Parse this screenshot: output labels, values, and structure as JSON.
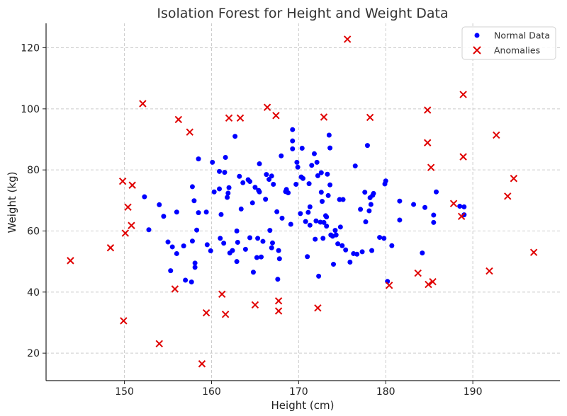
{
  "chart_data": {
    "type": "scatter",
    "title": "Isolation Forest for Height and Weight Data",
    "xlabel": "Height (cm)",
    "ylabel": "Weight (kg)",
    "xlim": [
      141,
      200
    ],
    "ylim": [
      11,
      128
    ],
    "x_ticks": [
      150,
      160,
      170,
      180,
      190
    ],
    "y_ticks": [
      20,
      40,
      60,
      80,
      100,
      120
    ],
    "grid": true,
    "legend_position": "top-right",
    "series": [
      {
        "name": "Normal Data",
        "marker": "circle",
        "color": "#0000ff",
        "points": [
          [
            152.3,
            71.2
          ],
          [
            152.8,
            60.4
          ],
          [
            154,
            68.6
          ],
          [
            154.5,
            64.8
          ],
          [
            155,
            56.4
          ],
          [
            155.3,
            47
          ],
          [
            155.5,
            54.8
          ],
          [
            156,
            66.2
          ],
          [
            156,
            52.6
          ],
          [
            156.8,
            55.1
          ],
          [
            157,
            43.9
          ],
          [
            157.7,
            43.3
          ],
          [
            157.8,
            56.7
          ],
          [
            157.8,
            74.5
          ],
          [
            158,
            69.9
          ],
          [
            158.1,
            49.5
          ],
          [
            158.1,
            48.1
          ],
          [
            158.3,
            60.3
          ],
          [
            158.5,
            83.6
          ],
          [
            158.5,
            66
          ],
          [
            159.4,
            66.2
          ],
          [
            159.5,
            55.5
          ],
          [
            159.9,
            53.5
          ],
          [
            160.1,
            82.5
          ],
          [
            160.3,
            72.8
          ],
          [
            160.9,
            73.8
          ],
          [
            160.9,
            79.5
          ],
          [
            161,
            57.6
          ],
          [
            161.1,
            65.4
          ],
          [
            161.4,
            56
          ],
          [
            161.5,
            79.2
          ],
          [
            161.6,
            84.1
          ],
          [
            161.8,
            71
          ],
          [
            161.9,
            72.4
          ],
          [
            162,
            74.2
          ],
          [
            162.1,
            52.8
          ],
          [
            162.4,
            53.6
          ],
          [
            162.7,
            91
          ],
          [
            162.9,
            60
          ],
          [
            162.9,
            50
          ],
          [
            163,
            56.3
          ],
          [
            163.2,
            77.9
          ],
          [
            163.4,
            67.2
          ],
          [
            163.6,
            75.8
          ],
          [
            163.9,
            54
          ],
          [
            164.2,
            76.8
          ],
          [
            164.4,
            76.2
          ],
          [
            164.4,
            57.8
          ],
          [
            164.7,
            69.2
          ],
          [
            164.8,
            46.5
          ],
          [
            165,
            74.3
          ],
          [
            165.2,
            51.3
          ],
          [
            165.3,
            57.6
          ],
          [
            165.4,
            73.3
          ],
          [
            165.5,
            72.8
          ],
          [
            165.5,
            82
          ],
          [
            165.7,
            51.5
          ],
          [
            165.9,
            56.6
          ],
          [
            166.2,
            70.4
          ],
          [
            166.3,
            78.5
          ],
          [
            166.6,
            76.9
          ],
          [
            166.7,
            60.2
          ],
          [
            166.9,
            78
          ],
          [
            166.9,
            54.5
          ],
          [
            167,
            56.1
          ],
          [
            167.1,
            75.3
          ],
          [
            167.5,
            66.3
          ],
          [
            167.6,
            44.2
          ],
          [
            167.7,
            53.6
          ],
          [
            167.8,
            50.9
          ],
          [
            168,
            84.6
          ],
          [
            168.1,
            64.2
          ],
          [
            168.5,
            72.9
          ],
          [
            168.6,
            73.6
          ],
          [
            168.8,
            72.5
          ],
          [
            169.1,
            62.2
          ],
          [
            169.3,
            86.9
          ],
          [
            169.3,
            89.5
          ],
          [
            169.3,
            93.2
          ],
          [
            169.7,
            75.3
          ],
          [
            169.8,
            82.5
          ],
          [
            169.9,
            80.9
          ],
          [
            170.2,
            65.7
          ],
          [
            170.3,
            77.7
          ],
          [
            170.4,
            87.1
          ],
          [
            170.5,
            77.2
          ],
          [
            170.8,
            63.1
          ],
          [
            171,
            51.6
          ],
          [
            171.1,
            66.1
          ],
          [
            171.2,
            75.5
          ],
          [
            171.3,
            61.9
          ],
          [
            171.3,
            67.9
          ],
          [
            171.5,
            81.5
          ],
          [
            171.8,
            85.3
          ],
          [
            171.9,
            57.3
          ],
          [
            172,
            63.3
          ],
          [
            172.1,
            82.5
          ],
          [
            172.2,
            78.1
          ],
          [
            172.3,
            45.2
          ],
          [
            172.5,
            62.9
          ],
          [
            172.6,
            72.7
          ],
          [
            172.6,
            79.1
          ],
          [
            172.7,
            69.7
          ],
          [
            172.8,
            57.6
          ],
          [
            172.9,
            62.8
          ],
          [
            173.1,
            65
          ],
          [
            173.2,
            61.6
          ],
          [
            173.2,
            64.6
          ],
          [
            173.3,
            78.6
          ],
          [
            173.4,
            71.6
          ],
          [
            173.5,
            91.4
          ],
          [
            173.6,
            87.2
          ],
          [
            173.6,
            75.1
          ],
          [
            173.7,
            58.7
          ],
          [
            173.9,
            58.3
          ],
          [
            174,
            49.1
          ],
          [
            174.2,
            60.2
          ],
          [
            174.3,
            58.7
          ],
          [
            174.5,
            55.8
          ],
          [
            174.7,
            70.3
          ],
          [
            174.8,
            61.3
          ],
          [
            175,
            55.2
          ],
          [
            175.1,
            70.3
          ],
          [
            175.4,
            53.8
          ],
          [
            175.9,
            49.8
          ],
          [
            176.3,
            52.6
          ],
          [
            176.5,
            81.3
          ],
          [
            176.7,
            52.4
          ],
          [
            177.1,
            67.1
          ],
          [
            177.3,
            53.2
          ],
          [
            177.6,
            72.7
          ],
          [
            177.7,
            63
          ],
          [
            177.9,
            88
          ],
          [
            178.1,
            66.6
          ],
          [
            178.2,
            70.9
          ],
          [
            178.3,
            68.7
          ],
          [
            178.4,
            53.6
          ],
          [
            178.5,
            71.7
          ],
          [
            178.6,
            72.3
          ],
          [
            179.3,
            57.9
          ],
          [
            179.8,
            57.6
          ],
          [
            179.9,
            75.4
          ],
          [
            180,
            76.4
          ],
          [
            180.2,
            43.5
          ],
          [
            180.7,
            55.2
          ],
          [
            181.6,
            63.6
          ],
          [
            181.6,
            69.8
          ],
          [
            183.2,
            68.7
          ],
          [
            184.2,
            52.8
          ],
          [
            184.5,
            67.7
          ],
          [
            185.5,
            65.2
          ],
          [
            185.5,
            62.8
          ],
          [
            185.8,
            72.8
          ],
          [
            188.5,
            68.1
          ],
          [
            189,
            65.3
          ],
          [
            189,
            67.9
          ]
        ]
      },
      {
        "name": "Anomalies",
        "marker": "x",
        "color": "#e00000",
        "points": [
          [
            175.6,
            122.8
          ],
          [
            152.1,
            101.7
          ],
          [
            166.4,
            100.5
          ],
          [
            188.9,
            104.7
          ],
          [
            156.2,
            96.5
          ],
          [
            162,
            97
          ],
          [
            163.3,
            97
          ],
          [
            167.4,
            97.8
          ],
          [
            172.9,
            97.3
          ],
          [
            178.2,
            97.2
          ],
          [
            184.8,
            99.6
          ],
          [
            157.5,
            92.4
          ],
          [
            192.7,
            91.4
          ],
          [
            184.8,
            88.9
          ],
          [
            185.2,
            80.8
          ],
          [
            188.9,
            84.3
          ],
          [
            149.8,
            76.3
          ],
          [
            150.9,
            75
          ],
          [
            194.7,
            77.2
          ],
          [
            194,
            71.4
          ],
          [
            150.4,
            67.8
          ],
          [
            187.8,
            69
          ],
          [
            188.7,
            64.8
          ],
          [
            150.8,
            61.8
          ],
          [
            150.1,
            59.3
          ],
          [
            148.4,
            54.5
          ],
          [
            143.8,
            50.3
          ],
          [
            197,
            53
          ],
          [
            191.9,
            46.9
          ],
          [
            183.7,
            46.2
          ],
          [
            185.4,
            43.4
          ],
          [
            184.9,
            42.5
          ],
          [
            180.4,
            42.2
          ],
          [
            155.8,
            41
          ],
          [
            161.2,
            39.3
          ],
          [
            165,
            35.8
          ],
          [
            167.7,
            37.1
          ],
          [
            167.7,
            33.8
          ],
          [
            172.2,
            34.8
          ],
          [
            159.4,
            33.2
          ],
          [
            161.6,
            32.7
          ],
          [
            149.9,
            30.6
          ],
          [
            154,
            23.1
          ],
          [
            158.9,
            16.5
          ]
        ]
      }
    ]
  }
}
